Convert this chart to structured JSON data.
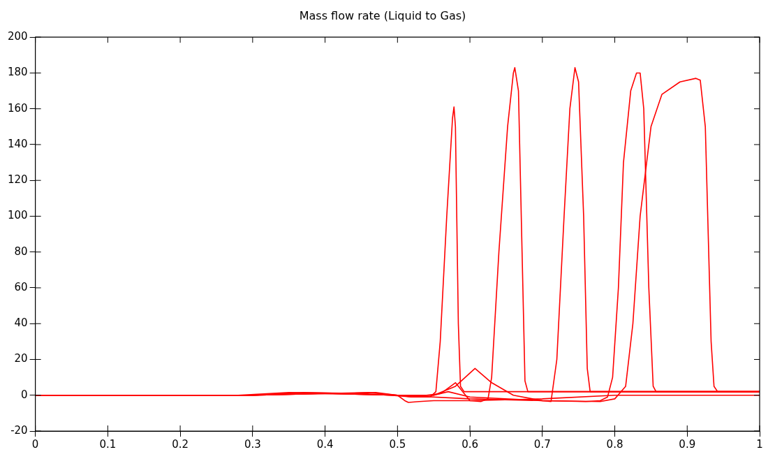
{
  "chart_data": {
    "type": "line",
    "title": "Mass flow rate (Liquid to Gas)",
    "xlim": [
      0,
      1
    ],
    "ylim": [
      -20,
      200
    ],
    "xticks": [
      0,
      0.1,
      0.2,
      0.3,
      0.4,
      0.5,
      0.6,
      0.7,
      0.8,
      0.9,
      1
    ],
    "yticks": [
      -20,
      0,
      20,
      40,
      60,
      80,
      100,
      120,
      140,
      160,
      180,
      200
    ],
    "grid": false,
    "legend": false,
    "marker": "none",
    "line_style": "solid",
    "series": [
      {
        "color": "#ff0000",
        "x": [
          0,
          0.3,
          0.35,
          0.4,
          0.45,
          0.5,
          0.52,
          0.545,
          0.553,
          0.559,
          0.568,
          0.576,
          0.578,
          0.58,
          0.584,
          0.587,
          0.592,
          1
        ],
        "values": [
          0,
          0,
          1,
          1,
          0.5,
          0,
          -1,
          -1,
          2,
          30,
          100,
          155,
          161,
          150,
          40,
          5,
          2,
          2
        ]
      },
      {
        "color": "#ff0000",
        "x": [
          0,
          0.28,
          0.35,
          0.45,
          0.49,
          0.52,
          0.56,
          0.58,
          0.6,
          0.615,
          0.625,
          0.63,
          0.64,
          0.652,
          0.66,
          0.662,
          0.667,
          0.672,
          0.676,
          0.68,
          1
        ],
        "values": [
          0,
          0,
          1.5,
          1,
          0,
          -1,
          1,
          7,
          -3,
          -3.5,
          -2,
          10,
          80,
          150,
          180,
          183,
          170,
          80,
          8,
          2,
          2
        ]
      },
      {
        "color": "#ff0000",
        "x": [
          0,
          0.3,
          0.4,
          0.46,
          0.5,
          0.55,
          0.58,
          0.607,
          0.63,
          0.66,
          0.7,
          0.712,
          0.72,
          0.73,
          0.738,
          0.745,
          0.75,
          0.757,
          0.762,
          0.766,
          1
        ],
        "values": [
          0,
          0,
          1,
          1.5,
          0,
          0,
          5,
          15,
          7,
          0,
          -3,
          -3.5,
          20,
          100,
          160,
          183,
          175,
          100,
          15,
          2,
          2
        ]
      },
      {
        "color": "#ff0000",
        "x": [
          0,
          0.3,
          0.4,
          0.5,
          0.55,
          0.57,
          0.6,
          0.7,
          0.76,
          0.78,
          0.79,
          0.797,
          0.805,
          0.812,
          0.822,
          0.83,
          0.835,
          0.84,
          0.847,
          0.853,
          0.857,
          1
        ],
        "values": [
          0,
          0,
          1,
          0,
          0,
          2,
          -1,
          -3,
          -3.5,
          -3,
          -1,
          10,
          60,
          130,
          170,
          180,
          180,
          160,
          60,
          5,
          2,
          2
        ]
      },
      {
        "color": "#ff0000",
        "x": [
          0,
          0.3,
          0.4,
          0.5,
          0.6,
          0.7,
          0.78,
          0.8,
          0.815,
          0.825,
          0.835,
          0.85,
          0.865,
          0.89,
          0.912,
          0.918,
          0.925,
          0.933,
          0.937,
          0.942,
          1
        ],
        "values": [
          0,
          0,
          1,
          0,
          -2,
          -3,
          -3.5,
          -2,
          5,
          40,
          100,
          150,
          168,
          175,
          177,
          176,
          150,
          30,
          5,
          2,
          2
        ]
      },
      {
        "color": "#ff0000",
        "x": [
          0,
          0.3,
          0.37,
          0.43,
          0.47,
          0.5,
          0.51,
          0.515,
          0.53,
          0.55,
          0.6,
          0.7,
          0.8,
          1
        ],
        "values": [
          0,
          0,
          1.5,
          1,
          1.5,
          0,
          -3,
          -4,
          -3.5,
          -3,
          -3,
          -2,
          0,
          0
        ]
      }
    ]
  }
}
